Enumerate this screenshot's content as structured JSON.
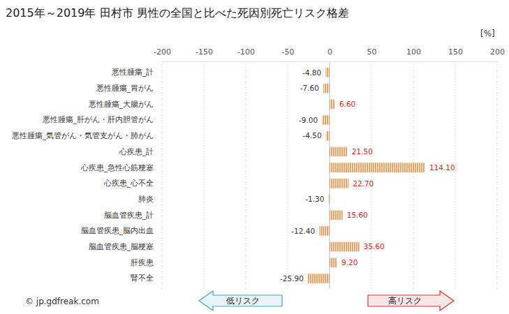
{
  "chart_data": {
    "type": "bar",
    "orientation": "horizontal",
    "title": "2015年～2019年 田村市 男性の全国と比べた死因別死亡リスク格差",
    "x_label": "[%]",
    "categories": [
      "悪性腫瘍_計",
      "悪性腫瘍_胃がん",
      "悪性腫瘍_大腸がん",
      "悪性腫瘍_肝がん・肝内胆管がん",
      "悪性腫瘍_気管がん・気管支がん・肺がん",
      "心疾患_計",
      "心疾患_急性心筋梗塞",
      "心疾患_心不全",
      "肺炎",
      "脳血管疾患_計",
      "脳血管疾患_脳内出血",
      "脳血管疾患_脳梗塞",
      "肝疾患",
      "腎不全"
    ],
    "values": [
      -4.8,
      -7.6,
      6.6,
      -9.0,
      -4.5,
      21.5,
      114.1,
      22.7,
      -1.3,
      15.6,
      -12.4,
      35.6,
      9.2,
      -25.9
    ],
    "value_labels": [
      "-4.80",
      "-7.60",
      "6.60",
      "-9.00",
      "-4.50",
      "21.50",
      "114.10",
      "22.70",
      "-1.30",
      "15.60",
      "-12.40",
      "35.60",
      "9.20",
      "-25.90"
    ],
    "data_labels": true,
    "color": "#f0a060",
    "xlim": [
      -200,
      200
    ],
    "xticks": [
      -200,
      -150,
      -100,
      -50,
      0,
      50,
      100,
      150,
      200
    ],
    "grid": true,
    "annotations": [
      "低リスク",
      "高リスク",
      "© jp.gdfreak.com"
    ]
  }
}
